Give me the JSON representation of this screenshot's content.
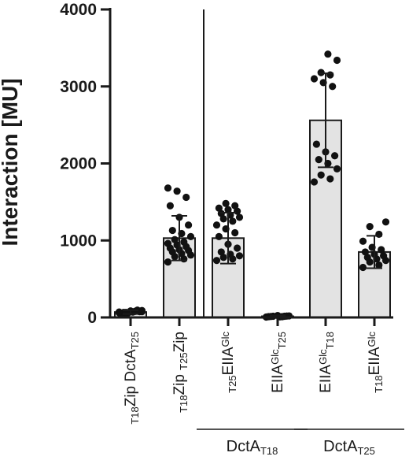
{
  "chart_data": {
    "type": "bar",
    "ylabel": "Interaction [MU]",
    "ylim": [
      0,
      4000
    ],
    "yticks": [
      "0",
      "1000",
      "2000",
      "3000",
      "4000"
    ],
    "error_bars": "mean ± SD",
    "bar_color": "#e3e3e3",
    "point_color": "#111111",
    "categories": [
      {
        "parts": [
          {
            "t": "T18",
            "s": "sub"
          },
          {
            "t": "Zip"
          },
          {
            "t": "  DctA"
          },
          {
            "t": "T25",
            "s": "sub"
          }
        ]
      },
      {
        "parts": [
          {
            "t": "T18",
            "s": "sub"
          },
          {
            "t": "Zip"
          },
          {
            "t": "  "
          },
          {
            "t": "T25",
            "s": "sub"
          },
          {
            "t": "Zip"
          }
        ]
      },
      {
        "parts": [
          {
            "t": "T25",
            "s": "sub"
          },
          {
            "t": "EIIA"
          },
          {
            "t": "Glc",
            "s": "sup"
          }
        ]
      },
      {
        "parts": [
          {
            "t": "EIIA"
          },
          {
            "t": "Glc",
            "s": "sup"
          },
          {
            "t": "T25",
            "s": "sub"
          }
        ]
      },
      {
        "parts": [
          {
            "t": "EIIA"
          },
          {
            "t": "Glc",
            "s": "sup"
          },
          {
            "t": "T18",
            "s": "sub"
          }
        ]
      },
      {
        "parts": [
          {
            "t": "T18",
            "s": "sub"
          },
          {
            "t": "EIIA"
          },
          {
            "t": "Glc",
            "s": "sup"
          }
        ]
      }
    ],
    "values": [
      70,
      1030,
      1030,
      15,
      2560,
      850
    ],
    "errors": [
      25,
      290,
      330,
      10,
      610,
      210
    ],
    "points": [
      [
        60,
        80,
        55,
        90,
        70,
        65,
        75,
        85,
        50,
        95,
        60,
        70,
        80,
        65,
        75
      ],
      [
        720,
        760,
        790,
        810,
        830,
        850,
        870,
        880,
        900,
        920,
        940,
        960,
        980,
        1010,
        1050,
        1090,
        1130,
        1200,
        1300,
        1450,
        1560,
        1640,
        1680
      ],
      [
        740,
        760,
        780,
        800,
        820,
        850,
        900,
        950,
        1050,
        1100,
        1150,
        1200,
        1250,
        1280,
        1300,
        1330,
        1350,
        1380,
        1400,
        1420,
        1450,
        1480
      ],
      [
        5,
        10,
        15,
        20,
        8,
        12,
        18,
        25,
        10,
        15
      ],
      [
        1760,
        1800,
        1850,
        1930,
        2000,
        2050,
        2100,
        2150,
        2250,
        3000,
        3050,
        3100,
        3150,
        3180,
        3340,
        3420
      ],
      [
        650,
        680,
        720,
        740,
        760,
        780,
        800,
        820,
        850,
        880,
        910,
        990,
        1080,
        1180,
        1240
      ]
    ],
    "separator_after_index": 1,
    "groups": [
      {
        "parts": [
          {
            "t": "DctA"
          },
          {
            "t": "T18",
            "s": "sub"
          }
        ],
        "span": [
          2,
          3
        ]
      },
      {
        "parts": [
          {
            "t": "DctA"
          },
          {
            "t": "T25",
            "s": "sub"
          }
        ],
        "span": [
          4,
          5
        ]
      }
    ]
  }
}
